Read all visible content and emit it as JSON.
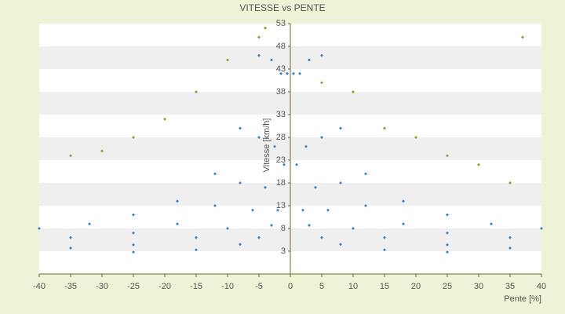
{
  "chart_data": {
    "type": "scatter",
    "title": "VITESSE vs PENTE",
    "x_label": "Pente [%]",
    "y_label": "Vitesse [km/h]",
    "xlim": [
      -40,
      40
    ],
    "xticks": [
      -40,
      -35,
      -30,
      -25,
      -20,
      -15,
      -10,
      -5,
      0,
      5,
      10,
      15,
      20,
      25,
      30,
      35,
      40
    ],
    "ylim": [
      -2,
      53
    ],
    "yticks": [
      3,
      8,
      13,
      18,
      23,
      28,
      33,
      38,
      43,
      48,
      53
    ],
    "grid": true,
    "series": [
      {
        "color": "#3d85c6",
        "x": [
          0.5,
          -0.5,
          1,
          -1,
          2,
          -2,
          3,
          -3,
          5,
          -5,
          8,
          -8,
          15,
          -15,
          25,
          -25,
          1.5,
          -1.5,
          2.5,
          -2.5,
          4,
          -4,
          6,
          -6,
          10,
          -10,
          15,
          -15,
          25,
          -25,
          35,
          -35,
          3,
          -3,
          5,
          -5,
          8,
          -8,
          12,
          -12,
          18,
          -18,
          25,
          -25,
          35,
          -35,
          5,
          -5,
          8,
          -8,
          12,
          -12,
          18,
          -18,
          25,
          -25,
          32,
          -32,
          40,
          -40
        ],
        "values": [
          42,
          42,
          22,
          22,
          12,
          12,
          8.7,
          8.7,
          6,
          6,
          4.5,
          4.5,
          3.3,
          3.3,
          2.8,
          2.8,
          42,
          42,
          26,
          26,
          17,
          17,
          12,
          12,
          8,
          8,
          6,
          6,
          4.4,
          4.4,
          3.7,
          3.7,
          45,
          45,
          28,
          28,
          18,
          18,
          13,
          13,
          9,
          9,
          7,
          7,
          6,
          6,
          46,
          46,
          30,
          30,
          20,
          20,
          14,
          14,
          11,
          11,
          9,
          9,
          8,
          8
        ]
      },
      {
        "color": "#9a9a3a",
        "x": [
          -5,
          -10,
          -15,
          -20,
          -25,
          -30,
          -35,
          -4,
          5,
          10,
          15,
          20,
          25,
          30,
          35,
          37
        ],
        "values": [
          50,
          45,
          38,
          32,
          28,
          25,
          24,
          52,
          40,
          38,
          30,
          28,
          24,
          22,
          18,
          50
        ]
      }
    ]
  }
}
